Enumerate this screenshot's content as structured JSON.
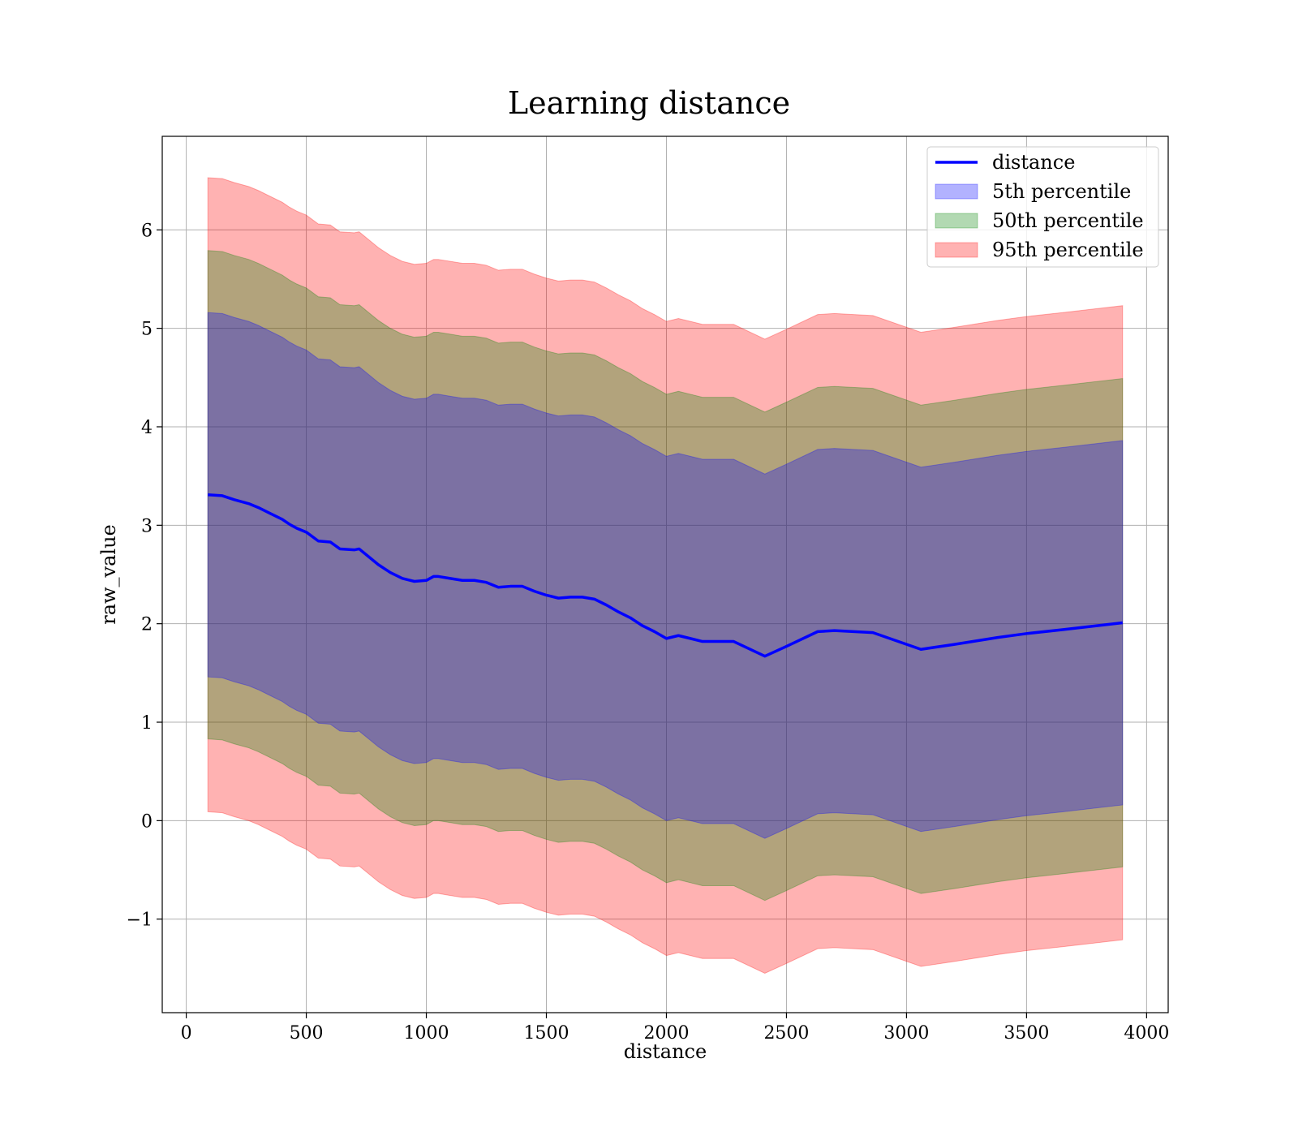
{
  "chart_data": {
    "type": "area",
    "title": "Learning distance",
    "xlabel": "distance",
    "ylabel": "raw_value",
    "xlim": [
      -100,
      4090
    ],
    "ylim": [
      -1.95,
      6.95
    ],
    "xticks": [
      0,
      500,
      1000,
      1500,
      2000,
      2500,
      3000,
      3500,
      4000
    ],
    "xtick_labels": [
      "0",
      "500",
      "1000",
      "1500",
      "2000",
      "2500",
      "3000",
      "3500",
      "4000"
    ],
    "yticks": [
      -1,
      0,
      1,
      2,
      3,
      4,
      5,
      6
    ],
    "ytick_labels": [
      "−1",
      "0",
      "1",
      "2",
      "3",
      "4",
      "5",
      "6"
    ],
    "grid": true,
    "legend_position": "top-right",
    "x": [
      90,
      150,
      200,
      260,
      300,
      350,
      400,
      430,
      460,
      500,
      550,
      600,
      640,
      700,
      720,
      760,
      800,
      850,
      900,
      950,
      1000,
      1030,
      1050,
      1100,
      1150,
      1200,
      1250,
      1300,
      1350,
      1400,
      1450,
      1500,
      1550,
      1600,
      1650,
      1700,
      1750,
      1800,
      1850,
      1900,
      1950,
      2000,
      2050,
      2100,
      2150,
      2200,
      2280,
      2410,
      2500,
      2630,
      2700,
      2860,
      3060,
      3200,
      3380,
      3500,
      3650,
      3900
    ],
    "series": [
      {
        "name": "distance",
        "kind": "line",
        "color": "#0000ff",
        "values": [
          3.31,
          3.3,
          3.26,
          3.22,
          3.18,
          3.12,
          3.06,
          3.01,
          2.97,
          2.93,
          2.84,
          2.83,
          2.76,
          2.75,
          2.76,
          2.68,
          2.6,
          2.52,
          2.46,
          2.43,
          2.44,
          2.48,
          2.48,
          2.46,
          2.44,
          2.44,
          2.42,
          2.37,
          2.38,
          2.38,
          2.33,
          2.29,
          2.26,
          2.27,
          2.27,
          2.25,
          2.19,
          2.12,
          2.06,
          1.98,
          1.92,
          1.85,
          1.88,
          1.85,
          1.82,
          1.82,
          1.82,
          1.67,
          1.77,
          1.92,
          1.93,
          1.91,
          1.74,
          1.79,
          1.86,
          1.9,
          1.94,
          2.01
        ]
      },
      {
        "name": "5th percentile",
        "kind": "band",
        "color": "#0000ff",
        "opacity": 0.3,
        "half_width": 1.85
      },
      {
        "name": "50th percentile",
        "kind": "band",
        "color": "#008000",
        "opacity": 0.3,
        "half_width": 2.48
      },
      {
        "name": "95th percentile",
        "kind": "band",
        "color": "#ff0000",
        "opacity": 0.3,
        "half_width": 3.22
      }
    ]
  }
}
